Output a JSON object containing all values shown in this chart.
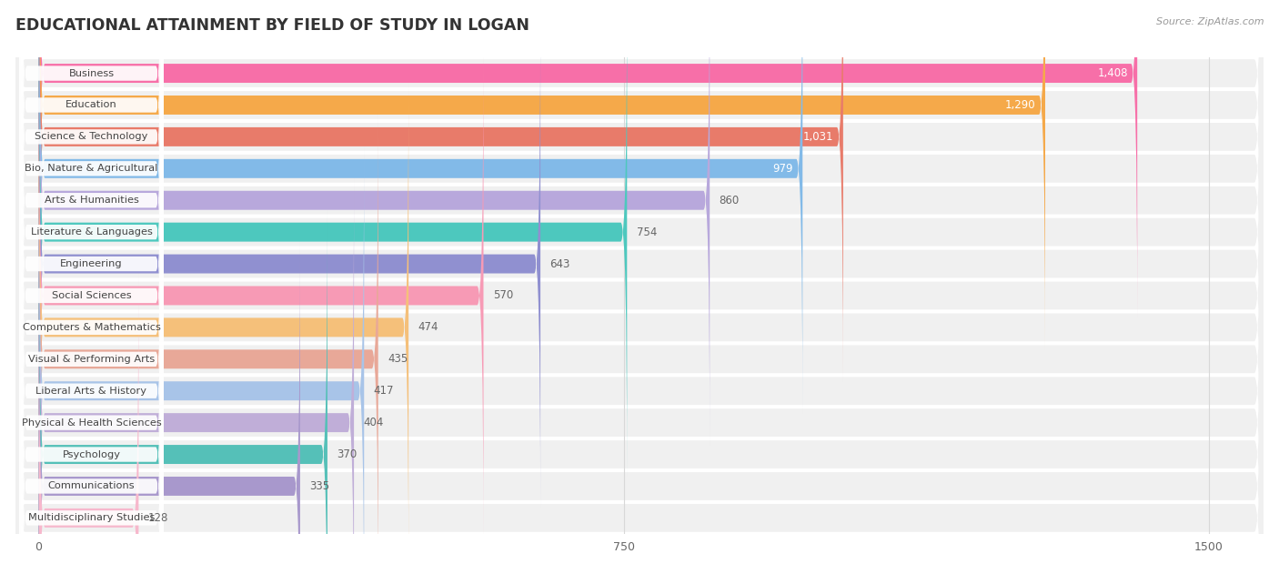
{
  "title": "EDUCATIONAL ATTAINMENT BY FIELD OF STUDY IN LOGAN",
  "source": "Source: ZipAtlas.com",
  "categories": [
    "Business",
    "Education",
    "Science & Technology",
    "Bio, Nature & Agricultural",
    "Arts & Humanities",
    "Literature & Languages",
    "Engineering",
    "Social Sciences",
    "Computers & Mathematics",
    "Visual & Performing Arts",
    "Liberal Arts & History",
    "Physical & Health Sciences",
    "Psychology",
    "Communications",
    "Multidisciplinary Studies"
  ],
  "values": [
    1408,
    1290,
    1031,
    979,
    860,
    754,
    643,
    570,
    474,
    435,
    417,
    404,
    370,
    335,
    128
  ],
  "bar_colors": [
    "#F76FA8",
    "#F5A94A",
    "#E87B6A",
    "#82BAE8",
    "#B8A8DC",
    "#4DC8BE",
    "#9090D0",
    "#F79AB5",
    "#F5C07A",
    "#E8A898",
    "#A8C4E8",
    "#C0AED8",
    "#55C0B8",
    "#A898CC",
    "#F7B8CC"
  ],
  "value_label_inside": [
    true,
    true,
    true,
    true,
    false,
    false,
    false,
    false,
    false,
    false,
    false,
    false,
    false,
    false,
    false
  ],
  "xlim_min": -30,
  "xlim_max": 1570,
  "xticks": [
    0,
    750,
    1500
  ],
  "background_color": "#ffffff",
  "row_bg_color": "#f0f0f0",
  "grid_color": "#d8d8d8",
  "title_color": "#333333",
  "source_color": "#999999",
  "value_label_outside_color": "#666666",
  "value_label_inside_color": "#ffffff",
  "category_label_color": "#444444"
}
